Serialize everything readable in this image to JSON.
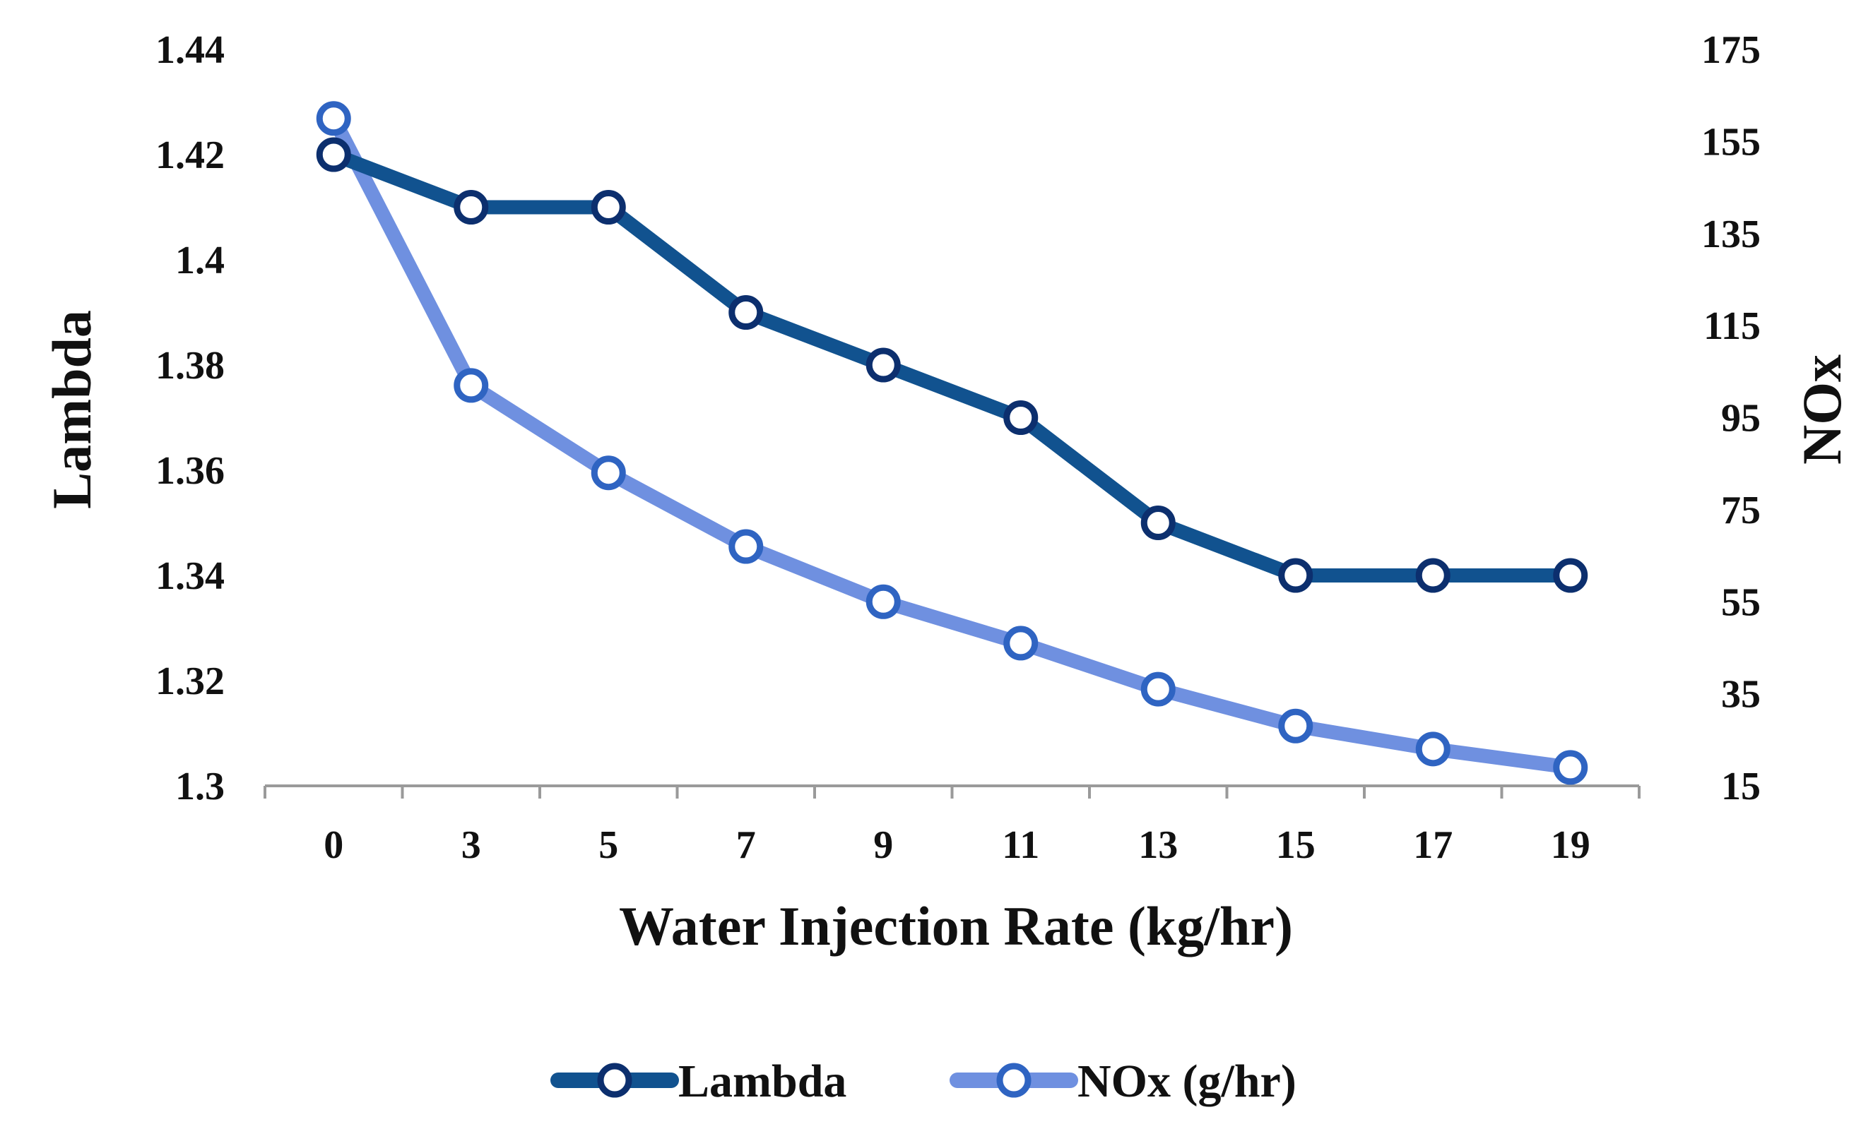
{
  "chart_data": {
    "type": "line",
    "title": "",
    "xlabel": "Water Injection Rate (kg/hr)",
    "ylabel_left": "Lambda",
    "ylabel_right": "NOx",
    "categories": [
      "0",
      "3",
      "5",
      "7",
      "9",
      "11",
      "13",
      "15",
      "17",
      "19"
    ],
    "ylim_left": [
      1.3,
      1.44
    ],
    "yticks_left": [
      "1.3",
      "1.32",
      "1.34",
      "1.36",
      "1.38",
      "1.4",
      "1.42",
      "1.44"
    ],
    "ylim_right": [
      15,
      175
    ],
    "yticks_right": [
      "15",
      "35",
      "55",
      "75",
      "95",
      "115",
      "135",
      "155",
      "175"
    ],
    "grid": false,
    "legend_position": "bottom",
    "series": [
      {
        "name": "Lambda",
        "axis": "left",
        "color": "#11528f",
        "marker_edge": "#0c2f6e",
        "values": [
          1.42,
          1.41,
          1.41,
          1.39,
          1.38,
          1.37,
          1.35,
          1.34,
          1.34,
          1.34
        ]
      },
      {
        "name": "NOx (g/hr)",
        "axis": "right",
        "color": "#6f90e0",
        "marker_edge": "#2f64c2",
        "values": [
          160,
          102,
          83,
          67,
          55,
          46,
          36,
          28,
          23,
          19
        ]
      }
    ]
  }
}
